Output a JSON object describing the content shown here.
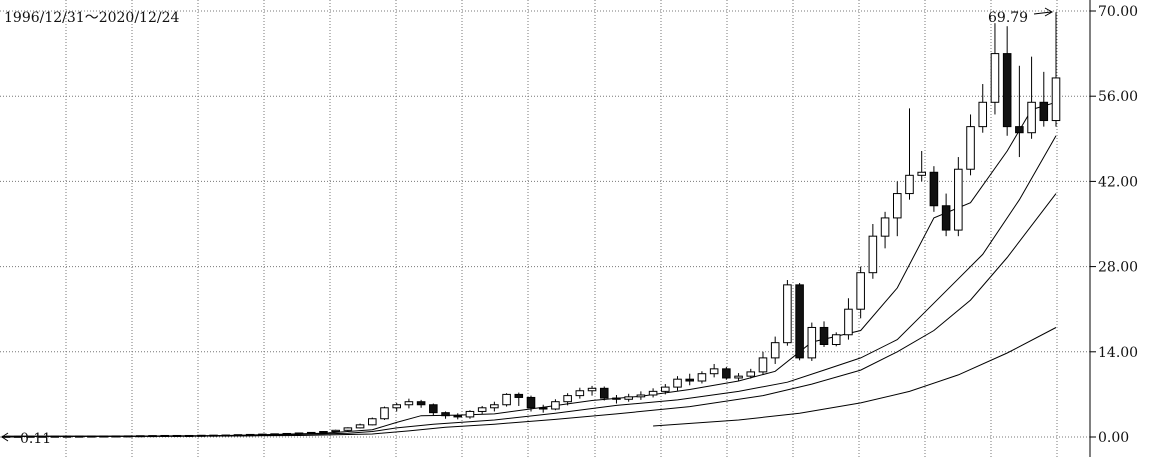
{
  "chart_data": {
    "type": "candlestick",
    "title": "1996/12/31～2020/12/24",
    "ylim": [
      0,
      70
    ],
    "y_ticks": [
      0,
      14,
      28,
      42,
      56,
      70
    ],
    "y_tick_labels": [
      "0.00",
      "14.00",
      "28.00",
      "42.00",
      "56.00",
      "70.00"
    ],
    "grid": true,
    "x_gridline_count": 16,
    "annotations": {
      "max": {
        "label": "69.79",
        "value": 69.79
      },
      "min": {
        "label": "0.11",
        "value": 0.11
      }
    },
    "candles": [
      [
        0.11,
        0.12,
        0.1,
        0.11
      ],
      [
        0.11,
        0.12,
        0.1,
        0.11
      ],
      [
        0.11,
        0.13,
        0.1,
        0.12
      ],
      [
        0.12,
        0.13,
        0.11,
        0.12
      ],
      [
        0.12,
        0.14,
        0.11,
        0.13
      ],
      [
        0.13,
        0.14,
        0.12,
        0.13
      ],
      [
        0.13,
        0.15,
        0.12,
        0.14
      ],
      [
        0.14,
        0.16,
        0.13,
        0.15
      ],
      [
        0.15,
        0.17,
        0.14,
        0.16
      ],
      [
        0.16,
        0.18,
        0.15,
        0.17
      ],
      [
        0.17,
        0.19,
        0.16,
        0.18
      ],
      [
        0.18,
        0.22,
        0.17,
        0.21
      ],
      [
        0.21,
        0.25,
        0.2,
        0.23
      ],
      [
        0.23,
        0.27,
        0.21,
        0.25
      ],
      [
        0.25,
        0.28,
        0.22,
        0.24
      ],
      [
        0.24,
        0.27,
        0.22,
        0.25
      ],
      [
        0.25,
        0.3,
        0.23,
        0.28
      ],
      [
        0.28,
        0.33,
        0.26,
        0.3
      ],
      [
        0.3,
        0.35,
        0.27,
        0.32
      ],
      [
        0.32,
        0.4,
        0.3,
        0.38
      ],
      [
        0.38,
        0.45,
        0.35,
        0.42
      ],
      [
        0.42,
        0.5,
        0.38,
        0.47
      ],
      [
        0.47,
        0.55,
        0.42,
        0.52
      ],
      [
        0.52,
        0.62,
        0.48,
        0.58
      ],
      [
        0.58,
        0.7,
        0.52,
        0.66
      ],
      [
        0.66,
        0.8,
        0.6,
        0.75
      ],
      [
        0.75,
        0.95,
        0.7,
        0.9
      ],
      [
        0.9,
        1.2,
        0.85,
        1.1
      ],
      [
        1.1,
        1.6,
        1.0,
        1.5
      ],
      [
        1.5,
        2.2,
        1.4,
        2.0
      ],
      [
        2.0,
        3.2,
        1.9,
        3.0
      ],
      [
        3.0,
        5.0,
        2.8,
        4.8
      ],
      [
        4.8,
        5.6,
        4.2,
        5.3
      ],
      [
        5.3,
        6.3,
        4.7,
        5.8
      ],
      [
        5.8,
        6.1,
        4.8,
        5.3
      ],
      [
        5.3,
        5.5,
        3.6,
        4.0
      ],
      [
        4.0,
        4.2,
        3.0,
        3.5
      ],
      [
        3.5,
        3.9,
        2.9,
        3.3
      ],
      [
        3.3,
        4.4,
        3.0,
        4.2
      ],
      [
        4.2,
        5.1,
        3.8,
        4.8
      ],
      [
        4.8,
        5.8,
        4.2,
        5.3
      ],
      [
        5.3,
        7.2,
        5.0,
        7.0
      ],
      [
        7.0,
        7.3,
        5.1,
        6.5
      ],
      [
        6.5,
        6.8,
        4.2,
        4.8
      ],
      [
        4.8,
        5.3,
        4.0,
        4.6
      ],
      [
        4.6,
        6.2,
        4.4,
        5.8
      ],
      [
        5.8,
        7.2,
        5.2,
        6.8
      ],
      [
        6.8,
        8.1,
        6.3,
        7.6
      ],
      [
        7.6,
        8.4,
        6.8,
        8.0
      ],
      [
        8.0,
        8.3,
        6.0,
        6.4
      ],
      [
        6.4,
        6.9,
        5.5,
        6.2
      ],
      [
        6.2,
        7.1,
        5.8,
        6.6
      ],
      [
        6.6,
        7.5,
        6.1,
        6.9
      ],
      [
        6.9,
        8.0,
        6.5,
        7.5
      ],
      [
        7.5,
        8.7,
        7.0,
        8.2
      ],
      [
        8.2,
        10.0,
        7.6,
        9.5
      ],
      [
        9.5,
        10.4,
        8.5,
        9.2
      ],
      [
        9.2,
        10.8,
        8.8,
        10.4
      ],
      [
        10.4,
        12.0,
        9.8,
        11.2
      ],
      [
        11.2,
        11.5,
        9.4,
        9.7
      ],
      [
        9.7,
        10.5,
        9.2,
        10.0
      ],
      [
        10.0,
        11.2,
        9.6,
        10.7
      ],
      [
        10.7,
        14.0,
        10.2,
        13.0
      ],
      [
        13.0,
        16.5,
        12.0,
        15.5
      ],
      [
        15.5,
        25.8,
        15.0,
        25.0
      ],
      [
        25.0,
        25.3,
        12.6,
        13.0
      ],
      [
        13.0,
        18.8,
        12.5,
        18.0
      ],
      [
        18.0,
        19.0,
        14.8,
        15.2
      ],
      [
        15.2,
        17.2,
        14.9,
        16.8
      ],
      [
        16.8,
        22.8,
        16.0,
        21.0
      ],
      [
        21.0,
        28.0,
        19.5,
        27.0
      ],
      [
        27.0,
        35.0,
        26.0,
        33.0
      ],
      [
        33.0,
        37.0,
        31.0,
        36.0
      ],
      [
        36.0,
        42.0,
        33.0,
        40.0
      ],
      [
        40.0,
        54.0,
        39.0,
        43.0
      ],
      [
        43.0,
        47.0,
        42.0,
        43.5
      ],
      [
        43.5,
        44.5,
        37.0,
        38.0
      ],
      [
        38.0,
        40.0,
        33.0,
        34.0
      ],
      [
        34.0,
        46.0,
        33.0,
        44.0
      ],
      [
        44.0,
        53.0,
        43.0,
        51.0
      ],
      [
        51.0,
        58.0,
        50.0,
        55.0
      ],
      [
        55.0,
        68.0,
        53.0,
        63.0
      ],
      [
        63.0,
        67.5,
        49.5,
        51.0
      ],
      [
        51.0,
        61.0,
        46.0,
        50.0
      ],
      [
        50.0,
        62.5,
        49.0,
        55.0
      ],
      [
        55.0,
        60.0,
        51.0,
        52.0
      ],
      [
        52.0,
        69.79,
        51.0,
        59.0
      ]
    ],
    "moving_averages": [
      {
        "points": [
          [
            0,
            0.11
          ],
          [
            10,
            0.14
          ],
          [
            18,
            0.25
          ],
          [
            26,
            0.6
          ],
          [
            30,
            1.2
          ],
          [
            32,
            2.4
          ],
          [
            34,
            3.5
          ],
          [
            37,
            3.6
          ],
          [
            40,
            3.8
          ],
          [
            44,
            4.9
          ],
          [
            48,
            6.0
          ],
          [
            52,
            6.7
          ],
          [
            56,
            7.8
          ],
          [
            60,
            9.2
          ],
          [
            63,
            10.8
          ],
          [
            66,
            15.6
          ],
          [
            70,
            17.5
          ],
          [
            73,
            24.5
          ],
          [
            76,
            36.0
          ],
          [
            79,
            38.5
          ],
          [
            82,
            47.0
          ],
          [
            84,
            53.8
          ],
          [
            86,
            55.0
          ]
        ]
      },
      {
        "points": [
          [
            0,
            0.1
          ],
          [
            12,
            0.13
          ],
          [
            20,
            0.22
          ],
          [
            28,
            0.6
          ],
          [
            30,
            0.9
          ],
          [
            32,
            1.5
          ],
          [
            35,
            2.1
          ],
          [
            40,
            2.8
          ],
          [
            45,
            3.9
          ],
          [
            50,
            5.2
          ],
          [
            55,
            6.1
          ],
          [
            60,
            7.5
          ],
          [
            64,
            9.0
          ],
          [
            67,
            11.0
          ],
          [
            70,
            13.0
          ],
          [
            73,
            16.0
          ],
          [
            75,
            20.0
          ],
          [
            78,
            26.0
          ],
          [
            80,
            30.0
          ],
          [
            83,
            39.0
          ],
          [
            86,
            49.5
          ]
        ]
      },
      {
        "points": [
          [
            0,
            0.1
          ],
          [
            14,
            0.12
          ],
          [
            24,
            0.25
          ],
          [
            30,
            0.5
          ],
          [
            33,
            1.0
          ],
          [
            36,
            1.6
          ],
          [
            40,
            2.1
          ],
          [
            45,
            2.9
          ],
          [
            50,
            3.8
          ],
          [
            56,
            5.0
          ],
          [
            62,
            6.8
          ],
          [
            66,
            8.7
          ],
          [
            70,
            11.0
          ],
          [
            73,
            14.0
          ],
          [
            76,
            17.5
          ],
          [
            79,
            22.5
          ],
          [
            82,
            29.5
          ],
          [
            86,
            40.0
          ]
        ]
      },
      {
        "points": [
          [
            53,
            1.8
          ],
          [
            60,
            2.8
          ],
          [
            65,
            3.9
          ],
          [
            70,
            5.6
          ],
          [
            74,
            7.5
          ],
          [
            78,
            10.2
          ],
          [
            82,
            13.8
          ],
          [
            86,
            18.0
          ]
        ]
      }
    ]
  }
}
